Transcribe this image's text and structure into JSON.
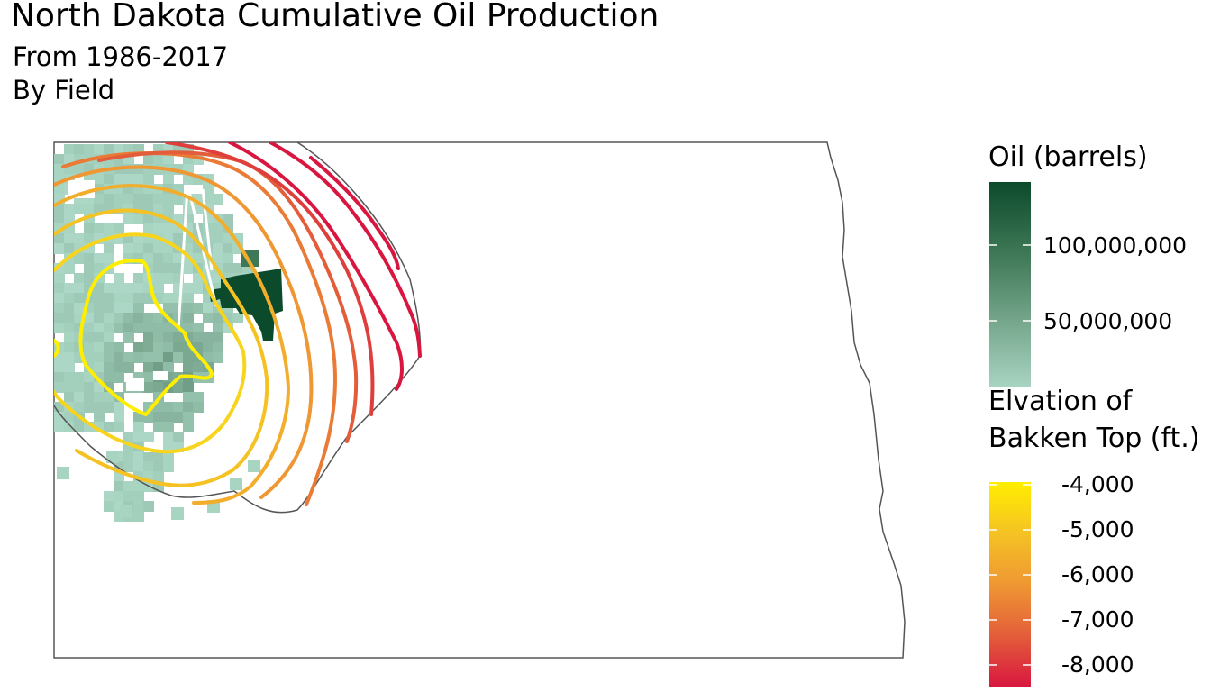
{
  "title": "North Dakota Cumulative Oil Production",
  "subtitle_line1": "From 1986-2017",
  "subtitle_line2": "By Field",
  "legend_oil": {
    "title": "Oil (barrels)",
    "labels": [
      "100,000,000",
      "50,000,000"
    ],
    "colors": [
      "#0c4a2c",
      "#3e7856",
      "#79a98f",
      "#a8d4c2"
    ]
  },
  "legend_elevation": {
    "title_line1": "Elvation of",
    "title_line2": "Bakken Top (ft.)",
    "labels": [
      "-4,000",
      "-5,000",
      "-6,000",
      "-7,000",
      "-8,000"
    ],
    "colors": [
      "#ffee00",
      "#f5c224",
      "#ef9733",
      "#e35d3a",
      "#d8163f"
    ]
  }
}
